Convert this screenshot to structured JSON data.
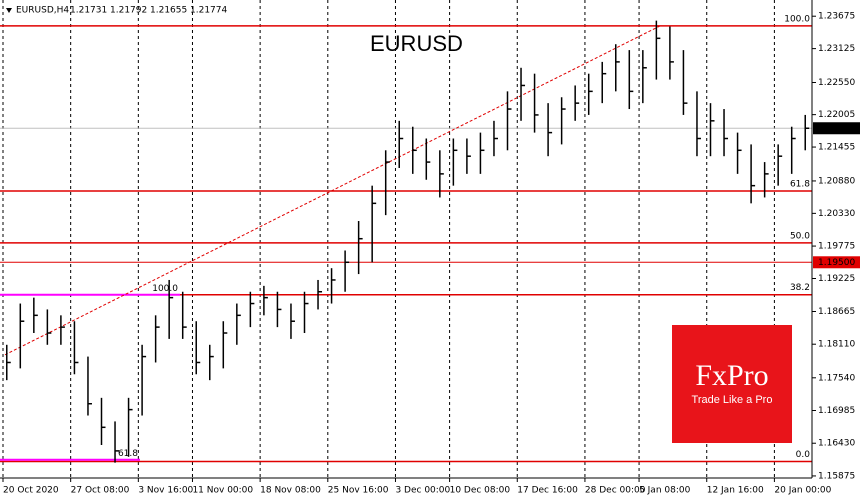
{
  "chart_data": {
    "type": "ohlc",
    "title": "EURUSD",
    "header": {
      "symbol": "EURUSD,H4",
      "ohlc": [
        1.21731,
        1.21792,
        1.21655,
        1.21774
      ]
    },
    "high": [
      1.181,
      1.188,
      1.189,
      1.187,
      1.186,
      1.185,
      1.179,
      1.172,
      1.168,
      1.172,
      1.181,
      1.186,
      1.192,
      1.19,
      1.185,
      1.181,
      1.185,
      1.188,
      1.19,
      1.191,
      1.19,
      1.188,
      1.19,
      1.192,
      1.194,
      1.197,
      1.202,
      1.208,
      1.214,
      1.219,
      1.218,
      1.216,
      1.214,
      1.216,
      1.216,
      1.217,
      1.219,
      1.224,
      1.228,
      1.227,
      1.222,
      1.223,
      1.225,
      1.227,
      1.229,
      1.232,
      1.231,
      1.231,
      1.236,
      1.235,
      1.231,
      1.224,
      1.222,
      1.221,
      1.217,
      1.215,
      1.212,
      1.215,
      1.218,
      1.22
    ],
    "low": [
      1.175,
      1.177,
      1.183,
      1.181,
      1.181,
      1.176,
      1.169,
      1.164,
      1.161,
      1.162,
      1.169,
      1.178,
      1.182,
      1.182,
      1.176,
      1.175,
      1.177,
      1.181,
      1.184,
      1.186,
      1.184,
      1.182,
      1.183,
      1.187,
      1.188,
      1.19,
      1.193,
      1.195,
      1.203,
      1.211,
      1.21,
      1.209,
      1.206,
      1.208,
      1.21,
      1.21,
      1.213,
      1.214,
      1.219,
      1.217,
      1.213,
      1.215,
      1.219,
      1.22,
      1.222,
      1.224,
      1.221,
      1.222,
      1.226,
      1.226,
      1.22,
      1.213,
      1.213,
      1.213,
      1.21,
      1.205,
      1.206,
      1.208,
      1.21,
      1.214
    ],
    "close": [
      1.178,
      1.185,
      1.186,
      1.183,
      1.184,
      1.178,
      1.171,
      1.167,
      1.163,
      1.17,
      1.179,
      1.184,
      1.189,
      1.184,
      1.178,
      1.179,
      1.183,
      1.186,
      1.188,
      1.189,
      1.187,
      1.185,
      1.188,
      1.19,
      1.192,
      1.195,
      1.199,
      1.205,
      1.212,
      1.216,
      1.214,
      1.212,
      1.21,
      1.214,
      1.213,
      1.214,
      1.216,
      1.221,
      1.225,
      1.22,
      1.217,
      1.221,
      1.222,
      1.224,
      1.227,
      1.229,
      1.224,
      1.228,
      1.233,
      1.229,
      1.222,
      1.216,
      1.219,
      1.216,
      1.214,
      1.208,
      1.21,
      1.213,
      1.216,
      1.21774
    ],
    "ylim": [
      1.1584,
      1.2395
    ],
    "yticks": [
      1.23675,
      1.23125,
      {
        "value": 1.2255,
        "label": "1.22550"
      },
      1.22005,
      1.21455,
      {
        "value": 1.2088,
        "label": "1.20880"
      },
      {
        "value": 1.2033,
        "label": "1.20330"
      },
      1.19775,
      1.19225,
      1.18665,
      {
        "value": 1.1811,
        "label": "1.18110"
      },
      {
        "value": 1.1754,
        "label": "1.17540"
      },
      1.16985,
      {
        "value": 1.1643,
        "label": "1.16430"
      },
      1.15875
    ],
    "xticks": [
      {
        "value": 0,
        "label": "20 Oct 2020"
      },
      {
        "value": 5,
        "label": "27 Oct 08:00"
      },
      {
        "value": 10,
        "label": "3 Nov 16:00"
      },
      {
        "value": 14,
        "label": "11 Nov 00:00"
      },
      {
        "value": 19,
        "label": "18 Nov 08:00"
      },
      {
        "value": 24,
        "label": "25 Nov 16:00"
      },
      {
        "value": 29,
        "label": "3 Dec 00:00"
      },
      {
        "value": 33,
        "label": "10 Dec 08:00"
      },
      {
        "value": 38,
        "label": "17 Dec 16:00"
      },
      {
        "value": 43,
        "label": "28 Dec 00:00"
      },
      {
        "value": 47,
        "label": "5 Jan 08:00"
      },
      {
        "value": 52,
        "label": "12 Jan 16:00"
      },
      {
        "value": 57,
        "label": "20 Jan 00:00"
      }
    ],
    "fib_levels": [
      {
        "value": 1.2351,
        "label": "100.0"
      },
      {
        "value": 1.2071,
        "label": "61.8"
      },
      {
        "value": 1.1983,
        "label": "50.0"
      },
      {
        "value": 1.1895,
        "label": "38.2"
      },
      {
        "value": 1.1612,
        "label": "0.0"
      }
    ],
    "fib_color": "#e00000",
    "minor_fib_levels": [
      {
        "value": 1.1895,
        "label": "100.0"
      },
      {
        "value": 1.1615,
        "label": "61.8"
      }
    ],
    "minor_fib_color": "#ff00ff",
    "price_line": {
      "value": 1.195,
      "label": "1.19500"
    },
    "current_price": 1.21774,
    "trendline": [
      1.1793,
      1.2351
    ],
    "logo": {
      "name": "FxPro",
      "tagline": "Trade Like a Pro"
    }
  }
}
